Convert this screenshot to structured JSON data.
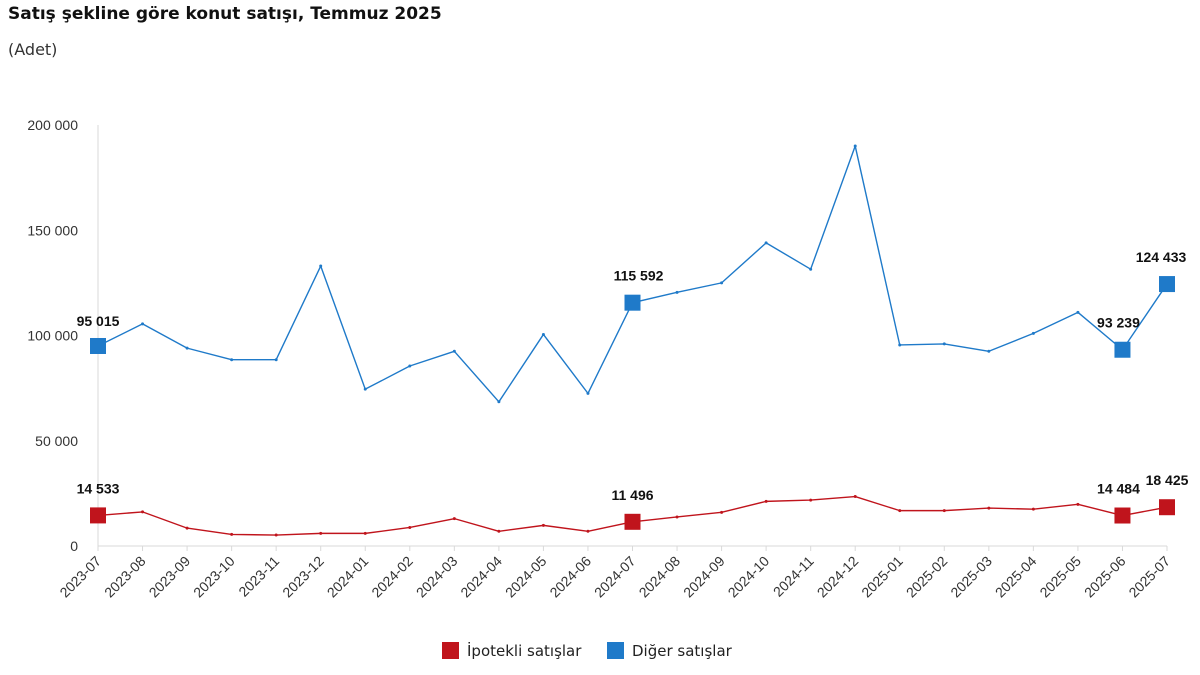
{
  "header": {
    "title": "Satış şekline göre konut satışı, Temmuz 2025",
    "subtitle": "(Adet)"
  },
  "colors": {
    "ipotekli": "#c0141c",
    "diger": "#1f7ac9"
  },
  "chart_data": {
    "type": "line",
    "title": "Satış şekline göre konut satışı, Temmuz 2025",
    "subtitle": "(Adet)",
    "ylim": [
      0,
      200000
    ],
    "yticks": [
      0,
      50000,
      100000,
      150000,
      200000
    ],
    "ytick_labels": [
      "0",
      "50 000",
      "100 000",
      "150 000",
      "200 000"
    ],
    "grid": false,
    "legend_position": "bottom",
    "categories": [
      "2023-07",
      "2023-08",
      "2023-09",
      "2023-10",
      "2023-11",
      "2023-12",
      "2024-01",
      "2024-02",
      "2024-03",
      "2024-04",
      "2024-05",
      "2024-06",
      "2024-07",
      "2024-08",
      "2024-09",
      "2024-10",
      "2024-11",
      "2024-12",
      "2025-01",
      "2025-02",
      "2025-03",
      "2025-04",
      "2025-05",
      "2025-06",
      "2025-07"
    ],
    "series": [
      {
        "name": "İpotekli satışlar",
        "color": "#c0141c",
        "values": [
          14533,
          16200,
          8500,
          5500,
          5200,
          6000,
          6000,
          8800,
          13000,
          7000,
          9800,
          7000,
          11496,
          13800,
          16000,
          21200,
          21800,
          23500,
          16800,
          16800,
          18000,
          17500,
          19800,
          14484,
          18425
        ],
        "labels": [
          {
            "index": 0,
            "text": "14 533"
          },
          {
            "index": 12,
            "text": "11 496"
          },
          {
            "index": 23,
            "text": "14 484"
          },
          {
            "index": 24,
            "text": "18 425"
          }
        ]
      },
      {
        "name": "Diğer satışlar",
        "color": "#1f7ac9",
        "values": [
          95015,
          105500,
          94000,
          88500,
          88500,
          133000,
          74500,
          85500,
          92500,
          68500,
          100500,
          72500,
          115592,
          120500,
          125000,
          144000,
          131500,
          190000,
          95500,
          96000,
          92500,
          101000,
          111000,
          93239,
          124433
        ],
        "labels": [
          {
            "index": 0,
            "text": "95 015"
          },
          {
            "index": 12,
            "text": "115 592"
          },
          {
            "index": 23,
            "text": "93 239"
          },
          {
            "index": 24,
            "text": "124 433"
          }
        ]
      }
    ]
  }
}
